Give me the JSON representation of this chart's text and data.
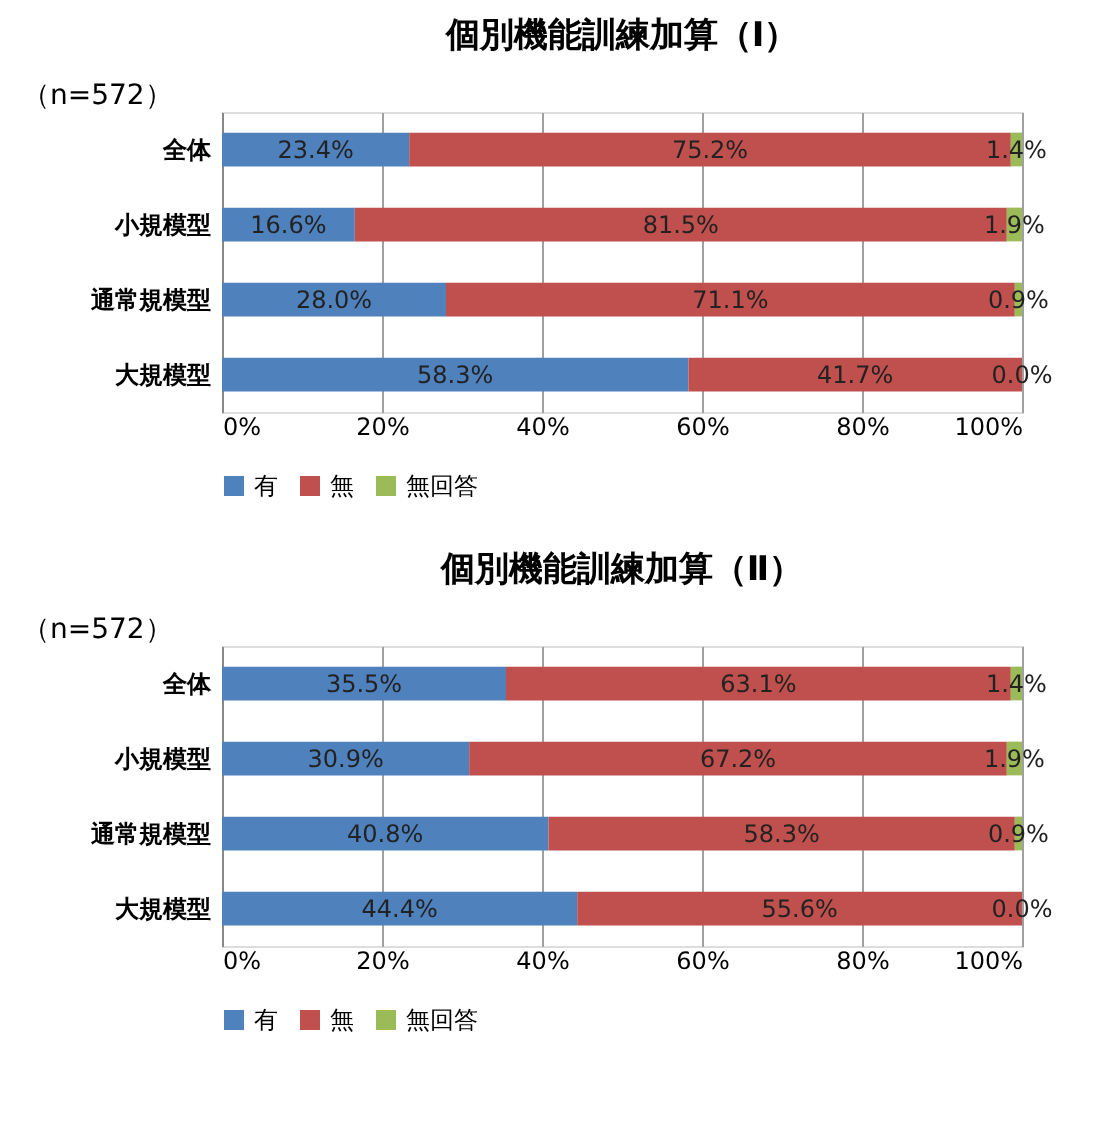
{
  "chart_data": [
    {
      "type": "bar",
      "orientation": "horizontal",
      "stacked": true,
      "title": "個別機能訓練加算（Ⅰ）",
      "annotations": [
        "（n=572）"
      ],
      "categories": [
        "全体",
        "小規模型",
        "通常規模型",
        "大規模型"
      ],
      "series": [
        {
          "name": "有",
          "color": "#4f81bd",
          "values": [
            23.4,
            16.6,
            28.0,
            58.3
          ],
          "value_labels": [
            "23.4%",
            "16.6%",
            "28.0%",
            "58.3%"
          ]
        },
        {
          "name": "無",
          "color": "#c0504d",
          "values": [
            75.2,
            81.5,
            71.1,
            41.7
          ],
          "value_labels": [
            "75.2%",
            "81.5%",
            "71.1%",
            "41.7%"
          ]
        },
        {
          "name": "無回答",
          "color": "#9bbb59",
          "values": [
            1.4,
            1.9,
            0.9,
            0.0
          ],
          "value_labels": [
            "1.4%",
            "1.9%",
            "0.9%",
            "0.0%"
          ]
        }
      ],
      "xlim": [
        0,
        100
      ],
      "xticks": [
        {
          "value": 0,
          "label": "0%"
        },
        {
          "value": 20,
          "label": "20%"
        },
        {
          "value": 40,
          "label": "40%"
        },
        {
          "value": 60,
          "label": "60%"
        },
        {
          "value": 80,
          "label": "80%"
        },
        {
          "value": 100,
          "label": "100%"
        }
      ],
      "grid": "x",
      "legend": "bottom"
    },
    {
      "type": "bar",
      "orientation": "horizontal",
      "stacked": true,
      "title": "個別機能訓練加算（Ⅱ）",
      "annotations": [
        "（n=572）"
      ],
      "categories": [
        "全体",
        "小規模型",
        "通常規模型",
        "大規模型"
      ],
      "series": [
        {
          "name": "有",
          "color": "#4f81bd",
          "values": [
            35.5,
            30.9,
            40.8,
            44.4
          ],
          "value_labels": [
            "35.5%",
            "30.9%",
            "40.8%",
            "44.4%"
          ]
        },
        {
          "name": "無",
          "color": "#c0504d",
          "values": [
            63.1,
            67.2,
            58.3,
            55.6
          ],
          "value_labels": [
            "63.1%",
            "67.2%",
            "58.3%",
            "55.6%"
          ]
        },
        {
          "name": "無回答",
          "color": "#9bbb59",
          "values": [
            1.4,
            1.9,
            0.9,
            0.0
          ],
          "value_labels": [
            "1.4%",
            "1.9%",
            "0.9%",
            "0.0%"
          ]
        }
      ],
      "xlim": [
        0,
        100
      ],
      "xticks": [
        {
          "value": 0,
          "label": "0%"
        },
        {
          "value": 20,
          "label": "20%"
        },
        {
          "value": 40,
          "label": "40%"
        },
        {
          "value": 60,
          "label": "60%"
        },
        {
          "value": 80,
          "label": "80%"
        },
        {
          "value": 100,
          "label": "100%"
        }
      ],
      "grid": "x",
      "legend": "bottom"
    }
  ]
}
